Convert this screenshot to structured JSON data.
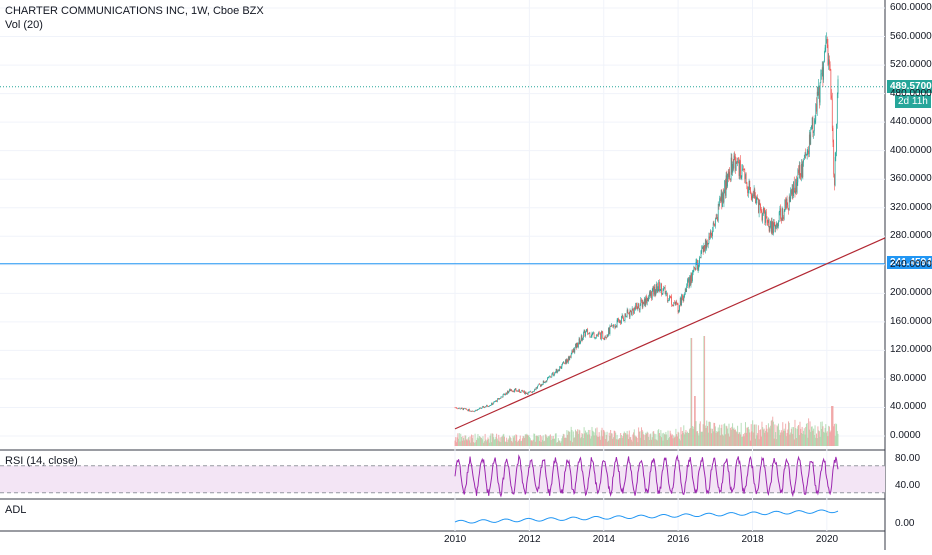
{
  "header": {
    "symbol_title": "CHARTER COMMUNICATIONS INC, 1W, Cboe BZX",
    "volume_label": "Vol (20)"
  },
  "price_axis": {
    "ticks": [
      "600.0000",
      "560.0000",
      "520.0000",
      "480.0000",
      "440.0000",
      "400.0000",
      "360.0000",
      "320.0000",
      "280.0000",
      "240.0000",
      "200.0000",
      "160.0000",
      "120.0000",
      "80.0000",
      "40.0000",
      "0.0000"
    ],
    "tick_values": [
      600,
      560,
      520,
      480,
      440,
      400,
      360,
      320,
      280,
      240,
      200,
      160,
      120,
      80,
      40,
      0
    ]
  },
  "badges": {
    "last_price": "489.5700",
    "countdown": "2d 11h",
    "hline_price": "241.4594"
  },
  "rsi": {
    "label": "RSI (14, close)",
    "ticks": [
      "80.00",
      "40.00"
    ],
    "tick_values": [
      80,
      40
    ]
  },
  "adl": {
    "label": "ADL",
    "ticks": [
      "0.00"
    ]
  },
  "time_axis": {
    "ticks": [
      "2010",
      "2012",
      "2014",
      "2016",
      "2018",
      "2020"
    ],
    "tick_years": [
      2010,
      2012,
      2014,
      2016,
      2018,
      2020
    ]
  },
  "colors": {
    "up": "#26a69a",
    "down": "#ef5350",
    "trendline": "#b22833",
    "hline": "#2196f3",
    "last_price": "#26a69a",
    "rsi_line": "#9c27b0",
    "rsi_band": "#f3e5f5",
    "adl_line": "#2196f3"
  },
  "chart_data": {
    "type": "line",
    "title": "CHARTER COMMUNICATIONS INC, 1W, Cboe BZX",
    "x": [
      2010.0,
      2010.5,
      2011.0,
      2011.5,
      2012.0,
      2012.5,
      2013.0,
      2013.5,
      2014.0,
      2014.5,
      2015.0,
      2015.5,
      2016.0,
      2016.5,
      2017.0,
      2017.5,
      2018.0,
      2018.5,
      2019.0,
      2019.5,
      2020.0,
      2020.1,
      2020.2,
      2020.3
    ],
    "series": [
      {
        "values": [
          40,
          35,
          45,
          65,
          60,
          80,
          105,
          145,
          140,
          165,
          185,
          210,
          180,
          240,
          300,
          390,
          340,
          290,
          330,
          400,
          540,
          490,
          360,
          489.57
        ]
      }
    ],
    "xlim": [
      2010,
      2020.3
    ],
    "ylim": [
      0,
      600
    ],
    "annotations": {
      "horizontal_line": 241.4594,
      "trendline": {
        "start": [
          2010,
          10
        ],
        "end": [
          2020.8,
          260
        ]
      }
    }
  }
}
